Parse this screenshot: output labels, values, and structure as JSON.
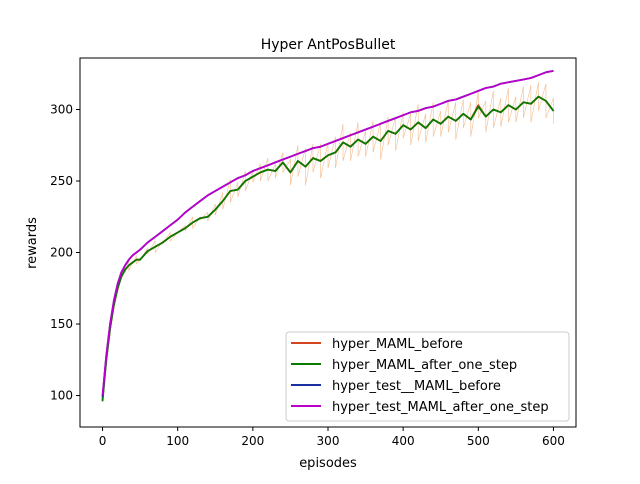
{
  "chart_data": {
    "type": "line",
    "title": "Hyper AntPosBullet",
    "xlabel": "episodes",
    "ylabel": "rewards",
    "xlim": [
      -30,
      630
    ],
    "ylim": [
      78,
      336
    ],
    "xticks": [
      0,
      100,
      200,
      300,
      400,
      500,
      600
    ],
    "yticks": [
      100,
      150,
      200,
      250,
      300
    ],
    "grid": false,
    "legend_position": "lower-right",
    "series": [
      {
        "name": "hyper_MAML_before",
        "color": "#d2451e",
        "x": [
          0,
          5,
          10,
          15,
          20,
          25,
          30,
          35,
          40,
          45,
          50,
          60,
          70,
          80,
          90,
          100,
          110,
          120,
          130,
          140,
          150,
          160,
          170,
          180,
          190,
          200,
          210,
          220,
          230,
          240,
          250,
          260,
          270,
          280,
          290,
          300,
          310,
          320,
          330,
          340,
          350,
          360,
          370,
          380,
          390,
          400,
          410,
          420,
          430,
          440,
          450,
          460,
          470,
          480,
          490,
          500,
          510,
          520,
          530,
          540,
          550,
          560,
          570,
          580,
          590,
          600
        ],
        "y": [
          97,
          125,
          147,
          163,
          175,
          183,
          188,
          191,
          193,
          195,
          195,
          201,
          204,
          207,
          211,
          214,
          217,
          221,
          224,
          225,
          230,
          236,
          243,
          244,
          250,
          253,
          256,
          258,
          257,
          263,
          256,
          264,
          260,
          266,
          264,
          268,
          270,
          277,
          274,
          279,
          276,
          281,
          278,
          285,
          283,
          289,
          286,
          291,
          287,
          293,
          290,
          295,
          292,
          297,
          293,
          303,
          295,
          300,
          298,
          303,
          300,
          305,
          304,
          309,
          306,
          299
        ]
      },
      {
        "name": "hyper_MAML_after_one_step",
        "color": "#0a7a00",
        "x": [
          0,
          5,
          10,
          15,
          20,
          25,
          30,
          35,
          40,
          45,
          50,
          60,
          70,
          80,
          90,
          100,
          110,
          120,
          130,
          140,
          150,
          160,
          170,
          180,
          190,
          200,
          210,
          220,
          230,
          240,
          250,
          260,
          270,
          280,
          290,
          300,
          310,
          320,
          330,
          340,
          350,
          360,
          370,
          380,
          390,
          400,
          410,
          420,
          430,
          440,
          450,
          460,
          470,
          480,
          490,
          500,
          510,
          520,
          530,
          540,
          550,
          560,
          570,
          580,
          590,
          600
        ],
        "y": [
          96,
          125,
          147,
          163,
          175,
          183,
          188,
          191,
          193,
          195,
          195,
          201,
          204,
          207,
          211,
          214,
          217,
          221,
          224,
          225,
          230,
          236,
          243,
          244,
          250,
          253,
          256,
          258,
          257,
          263,
          256,
          264,
          260,
          266,
          264,
          268,
          270,
          277,
          274,
          279,
          276,
          281,
          278,
          285,
          283,
          289,
          286,
          291,
          287,
          293,
          290,
          295,
          292,
          297,
          293,
          302,
          295,
          300,
          298,
          303,
          300,
          305,
          304,
          309,
          306,
          299
        ]
      },
      {
        "name": "hyper_test__MAML_before",
        "color": "#1a2fa0",
        "x": [
          0,
          5,
          10,
          15,
          20,
          25,
          30,
          35,
          40,
          45,
          50,
          60,
          70,
          80,
          90,
          100,
          110,
          120,
          130,
          140,
          150,
          160,
          170,
          180,
          190,
          200,
          210,
          220,
          230,
          240,
          250,
          260,
          270,
          280,
          290,
          300,
          310,
          320,
          330,
          340,
          350,
          360,
          370,
          380,
          390,
          400,
          410,
          420,
          430,
          440,
          450,
          460,
          470,
          480,
          490,
          500,
          510,
          520,
          530,
          540,
          550,
          560,
          570,
          580,
          590,
          600
        ],
        "y": [
          99,
          128,
          150,
          166,
          178,
          186,
          191,
          195,
          198,
          200,
          202,
          207,
          211,
          215,
          219,
          223,
          228,
          232,
          236,
          240,
          243,
          246,
          249,
          252,
          254,
          257,
          259,
          261,
          263,
          265,
          267,
          269,
          271,
          273,
          274,
          276,
          278,
          280,
          282,
          284,
          286,
          288,
          290,
          292,
          294,
          296,
          298,
          299,
          301,
          302,
          304,
          306,
          307,
          309,
          311,
          313,
          315,
          316,
          318,
          319,
          320,
          321,
          322,
          324,
          326,
          327
        ]
      },
      {
        "name": "hyper_test_MAML_after_one_step",
        "color": "#bb00cc",
        "x": [
          0,
          5,
          10,
          15,
          20,
          25,
          30,
          35,
          40,
          45,
          50,
          60,
          70,
          80,
          90,
          100,
          110,
          120,
          130,
          140,
          150,
          160,
          170,
          180,
          190,
          200,
          210,
          220,
          230,
          240,
          250,
          260,
          270,
          280,
          290,
          300,
          310,
          320,
          330,
          340,
          350,
          360,
          370,
          380,
          390,
          400,
          410,
          420,
          430,
          440,
          450,
          460,
          470,
          480,
          490,
          500,
          510,
          520,
          530,
          540,
          550,
          560,
          570,
          580,
          590,
          600
        ],
        "y": [
          100,
          128,
          150,
          166,
          178,
          186,
          191,
          195,
          198,
          200,
          202,
          207,
          211,
          215,
          219,
          223,
          228,
          232,
          236,
          240,
          243,
          246,
          249,
          252,
          254,
          257,
          259,
          261,
          263,
          265,
          267,
          269,
          271,
          273,
          274,
          276,
          278,
          280,
          282,
          284,
          286,
          288,
          290,
          292,
          294,
          296,
          298,
          299,
          301,
          302,
          304,
          306,
          307,
          309,
          311,
          313,
          315,
          316,
          318,
          319,
          320,
          321,
          322,
          324,
          326,
          327
        ]
      }
    ]
  }
}
